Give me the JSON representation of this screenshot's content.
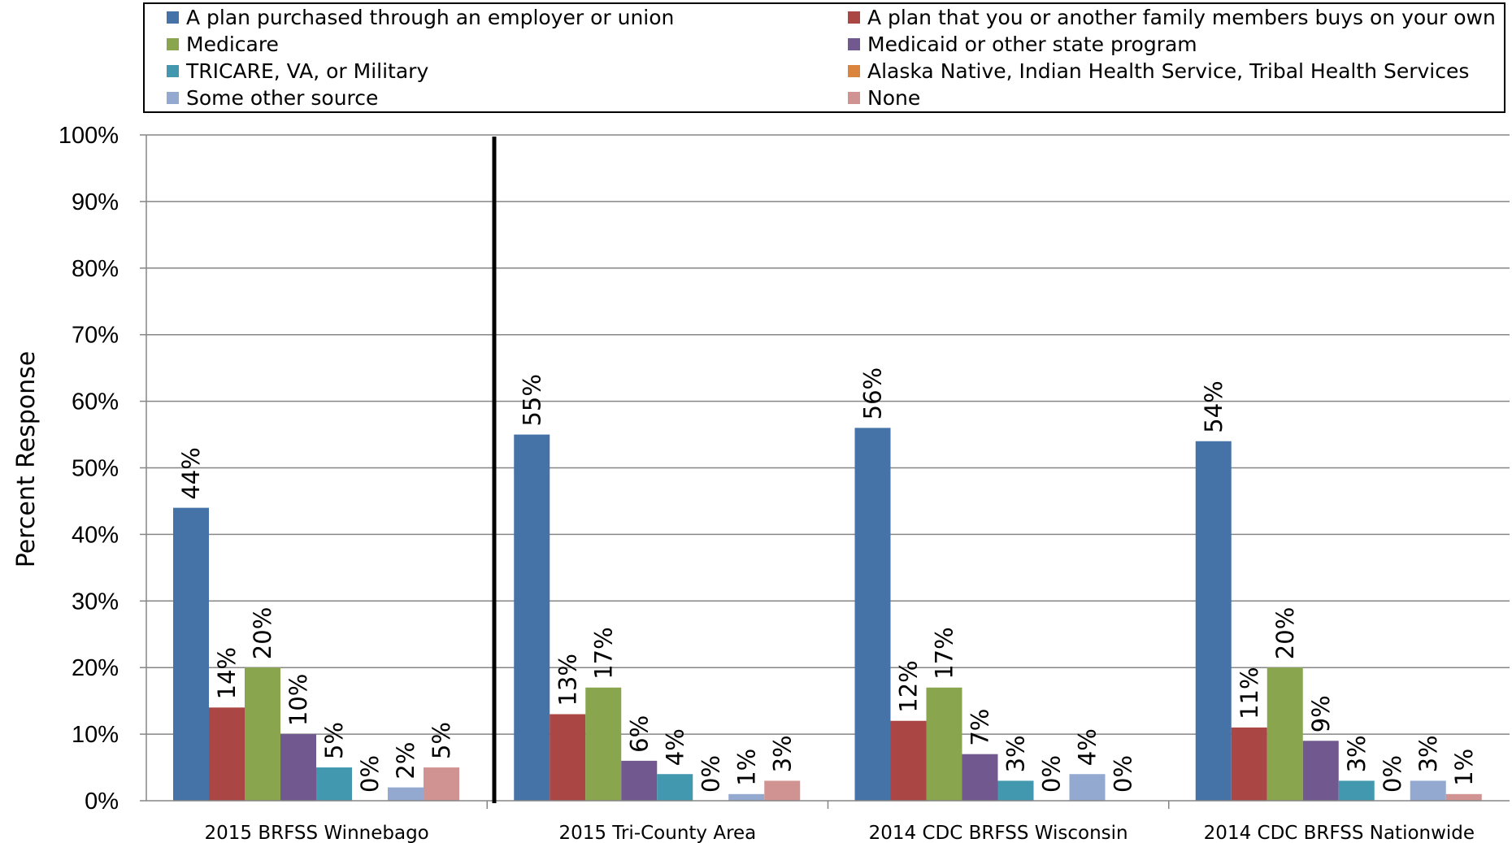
{
  "chart_data": {
    "type": "bar",
    "title": "",
    "xlabel": "",
    "ylabel": "Percent Response",
    "ylim": [
      0,
      100
    ],
    "yticks": [
      "0%",
      "10%",
      "20%",
      "30%",
      "40%",
      "50%",
      "60%",
      "70%",
      "80%",
      "90%",
      "100%"
    ],
    "grid": true,
    "legend_position": "top",
    "categories": [
      "2015 BRFSS Winnebago",
      "2015 Tri-County Area",
      "2014 CDC BRFSS Wisconsin",
      "2014 CDC BRFSS Nationwide"
    ],
    "series": [
      {
        "name": "A plan purchased through an employer or union",
        "color": "#4572A7",
        "values": [
          44,
          55,
          56,
          54
        ],
        "labels": [
          "44%",
          "55%",
          "56%",
          "54%"
        ]
      },
      {
        "name": "A plan that you or another family members buys on your own",
        "color": "#AA4643",
        "values": [
          14,
          13,
          12,
          11
        ],
        "labels": [
          "14%",
          "13%",
          "12%",
          "11%"
        ]
      },
      {
        "name": "Medicare",
        "color": "#89A54E",
        "values": [
          20,
          17,
          17,
          20
        ],
        "labels": [
          "20%",
          "17%",
          "17%",
          "20%"
        ]
      },
      {
        "name": "Medicaid or other state program",
        "color": "#71588F",
        "values": [
          10,
          6,
          7,
          9
        ],
        "labels": [
          "10%",
          "6%",
          "7%",
          "9%"
        ]
      },
      {
        "name": "TRICARE, VA, or Military",
        "color": "#4198AF",
        "values": [
          5,
          4,
          3,
          3
        ],
        "labels": [
          "5%",
          "4%",
          "3%",
          "3%"
        ]
      },
      {
        "name": "Alaska Native, Indian Health Service, Tribal Health Services",
        "color": "#DB843D",
        "values": [
          0,
          0,
          0,
          0
        ],
        "labels": [
          "0%",
          "0%",
          "0%",
          "0%"
        ]
      },
      {
        "name": "Some other source",
        "color": "#93A9CF",
        "values": [
          2,
          1,
          4,
          3
        ],
        "labels": [
          "2%",
          "1%",
          "4%",
          "3%"
        ]
      },
      {
        "name": "None",
        "color": "#D19392",
        "values": [
          5,
          3,
          0,
          1
        ],
        "labels": [
          "5%",
          "3%",
          "0%",
          "1%"
        ]
      }
    ]
  }
}
